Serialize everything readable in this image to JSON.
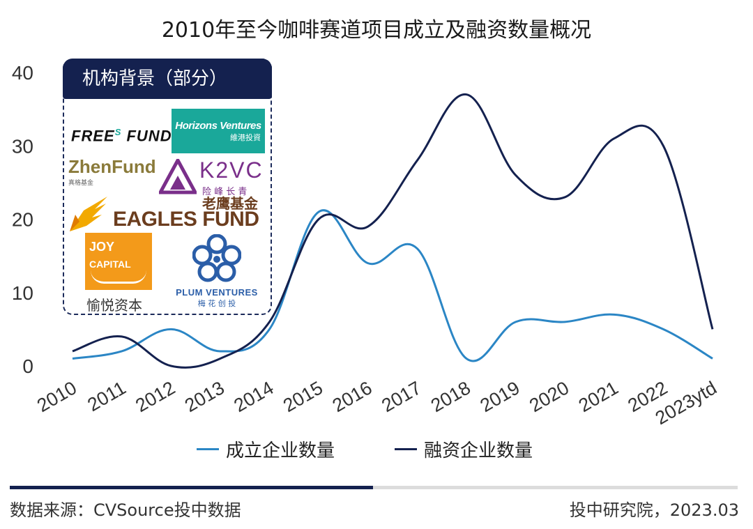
{
  "chart_data": {
    "type": "line",
    "title": "2010年至今咖啡赛道项目成立及融资数量概况",
    "categories": [
      "2010",
      "2011",
      "2012",
      "2013",
      "2014",
      "2015",
      "2016",
      "2017",
      "2018",
      "2019",
      "2020",
      "2021",
      "2022",
      "2023ytd"
    ],
    "series": [
      {
        "name": "成立企业数量",
        "color": "#2b86c5",
        "values": [
          1,
          2,
          5,
          2,
          5,
          21,
          14,
          16,
          1,
          6,
          6,
          7,
          5,
          1
        ]
      },
      {
        "name": "融资企业数量",
        "color": "#14214f",
        "values": [
          2,
          4,
          0,
          1,
          6,
          20,
          19,
          28,
          37,
          26,
          23,
          31,
          30,
          5
        ]
      }
    ],
    "ylim": [
      0,
      40
    ],
    "yticks": [
      0,
      10,
      20,
      30,
      40
    ],
    "grid": false,
    "legend_position": "bottom"
  },
  "inset": {
    "header": "机构背景（部分）",
    "logos": {
      "freesfund": {
        "text_a": "FREE",
        "text_s": "S",
        "text_b": "FUND"
      },
      "horizons": {
        "text": "Horizons Ventures",
        "sub": "維港投資",
        "color": "#1aa89a"
      },
      "zhenfund": {
        "text": "ZhenFund",
        "sub": "真格基金"
      },
      "k2vc": {
        "text": "K2VC",
        "sub": "险 峰 长 青",
        "color": "#7a2f8a"
      },
      "eagles": {
        "top": "老鹰基金",
        "text": "EAGLES FUND",
        "color": "#6b3d1e",
        "accent": "#f2a900"
      },
      "joy": {
        "line1": "JOY",
        "line2": "CAPITAL",
        "sub": "愉悦资本",
        "color": "#f39a1a"
      },
      "plum": {
        "text": "PLUM VENTURES",
        "sub": "梅 花 创 投",
        "color": "#2b5ea8"
      }
    }
  },
  "footer": {
    "source": "数据来源：CVSource投中数据",
    "credit": "投中研究院，2023.03"
  }
}
